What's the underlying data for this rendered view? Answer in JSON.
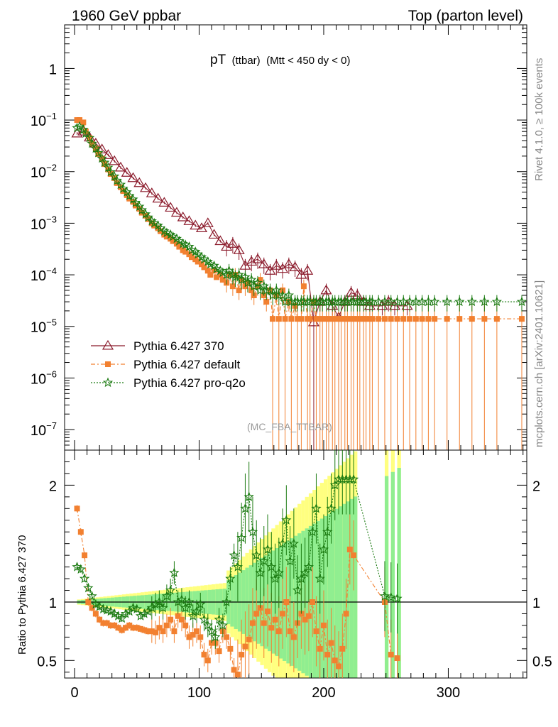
{
  "header": {
    "left": "1960 GeV ppbar",
    "right": "Top (parton level)"
  },
  "plot_title": {
    "main": "pT",
    "sub1": "(ttbar)",
    "sub2": "(Mtt < 450 dy < 0)"
  },
  "side": {
    "rivet": "Rivet 4.1.0, ≥ 100k events",
    "mcplots": "mcplots.cern.ch [arXiv:2401.10621]"
  },
  "watermark": "(MC_FBA_TTBAR)",
  "ratio_ylabel": "Ratio to Pythia 6.427 370",
  "colors": {
    "series370": "#8b1a2b",
    "default": "#f28030",
    "proq2o": "#1a7a10",
    "band_yellow": "#ffff80",
    "band_green": "#90ee90"
  },
  "chart_data": [
    {
      "type": "line",
      "panel": "main",
      "yscale": "log",
      "xlim": [
        -8,
        363
      ],
      "ylim": [
        4e-08,
        7
      ],
      "yticks": [
        {
          "v": 1e-07,
          "base": "10",
          "exp": "−7"
        },
        {
          "v": 1e-06,
          "base": "10",
          "exp": "−6"
        },
        {
          "v": 1e-05,
          "base": "10",
          "exp": "−5"
        },
        {
          "v": 0.0001,
          "base": "10",
          "exp": "−4"
        },
        {
          "v": 0.001,
          "base": "10",
          "exp": "−3"
        },
        {
          "v": 0.01,
          "base": "10",
          "exp": "−2"
        },
        {
          "v": 0.1,
          "base": "10",
          "exp": "−1"
        },
        {
          "v": 1,
          "base": "1",
          "exp": ""
        }
      ],
      "legend": [
        "Pythia 6.427 370",
        "Pythia 6.427 default",
        "Pythia 6.427 pro-q2o"
      ],
      "series": [
        {
          "name": "Pythia 6.427 370",
          "x": [
            2,
            7,
            12,
            17,
            22,
            27,
            32,
            37,
            42,
            47,
            52,
            57,
            62,
            67,
            72,
            77,
            82,
            87,
            92,
            97,
            102,
            107,
            112,
            117,
            122,
            127,
            132,
            137,
            142,
            147,
            152,
            157,
            162,
            167,
            172,
            177,
            182,
            187,
            192,
            197,
            202,
            207,
            212,
            217,
            222,
            227,
            232,
            237,
            247,
            252,
            257,
            267
          ],
          "y": [
            0.055,
            0.06,
            0.046,
            0.035,
            0.027,
            0.021,
            0.016,
            0.012,
            0.0095,
            0.0075,
            0.006,
            0.0048,
            0.0038,
            0.003,
            0.0025,
            0.002,
            0.0016,
            0.0013,
            0.0011,
            0.0009,
            0.0008,
            0.001,
            0.0006,
            0.00045,
            0.00035,
            0.0004,
            0.0003,
            0.00015,
            0.00018,
            0.0002,
            0.00016,
            0.00012,
            0.00015,
            0.00013,
            0.00016,
            0.00014,
            0.0001,
            0.00012,
            1.2e-05,
            3e-05,
            5e-05,
            2.5e-05,
            1.5e-05,
            3e-05,
            4.5e-05,
            4e-05,
            3e-05,
            2.5e-05,
            2.5e-05,
            3e-05,
            2.5e-05,
            2.5e-05
          ]
        },
        {
          "name": "Pythia 6.427 default",
          "x": [
            2,
            4,
            7,
            9,
            12,
            14,
            17,
            19,
            22,
            24,
            27,
            29,
            32,
            34,
            37,
            39,
            42,
            44,
            47,
            49,
            52,
            54,
            57,
            59,
            62,
            64,
            67,
            69,
            72,
            74,
            77,
            79,
            82,
            84,
            87,
            89,
            92,
            94,
            97,
            99,
            102,
            104,
            107,
            109,
            112,
            114,
            117,
            119,
            122,
            124,
            127,
            129,
            132,
            134,
            137,
            139,
            142,
            144,
            147,
            149,
            152,
            154,
            157,
            159,
            162,
            164,
            167,
            169,
            172,
            174,
            177,
            179,
            182,
            184,
            187,
            189,
            192,
            194,
            197,
            199,
            202,
            204,
            207,
            209,
            212,
            214,
            217,
            219,
            222,
            224,
            227,
            229,
            232,
            234,
            237,
            239,
            244,
            249,
            254,
            259,
            264,
            269,
            274,
            279,
            284,
            289,
            299,
            309,
            319,
            329,
            339,
            359
          ],
          "y": [
            0.1,
            0.1,
            0.09,
            0.06,
            0.045,
            0.035,
            0.028,
            0.022,
            0.018,
            0.014,
            0.011,
            0.009,
            0.0075,
            0.006,
            0.005,
            0.0042,
            0.0035,
            0.003,
            0.0026,
            0.0022,
            0.0019,
            0.0016,
            0.0014,
            0.0012,
            0.001,
            0.0009,
            0.0008,
            0.0007,
            0.0006,
            0.00055,
            0.0005,
            0.00045,
            0.0004,
            0.00035,
            0.0003,
            0.00028,
            0.00025,
            0.00022,
            0.0002,
            0.00018,
            0.00016,
            0.00014,
            0.00012,
            0.0001,
            0.00012,
            9e-05,
            0.0001,
            8e-05,
            7e-05,
            0.0001,
            6e-05,
            0.0001,
            5e-05,
            8e-05,
            6e-05,
            7e-05,
            5e-05,
            4e-05,
            6e-05,
            8e-05,
            4e-05,
            3e-05,
            5e-05,
            1.4e-05,
            4e-05,
            1.4e-05,
            5e-05,
            1.4e-05,
            3e-05,
            1.4e-05,
            2.5e-05,
            1.4e-05,
            1.4e-05,
            6e-05,
            1.4e-05,
            1.4e-05,
            3e-05,
            1.4e-05,
            1.4e-05,
            1.4e-05,
            1.4e-05,
            1.4e-05,
            1.4e-05,
            1.4e-05,
            1.4e-05,
            1.4e-05,
            1.4e-05,
            1.4e-05,
            1.4e-05,
            1.4e-05,
            1.4e-05,
            1.4e-05,
            1.4e-05,
            1.4e-05,
            1.4e-05,
            1.4e-05,
            1.4e-05,
            1.4e-05,
            1.4e-05,
            1.4e-05,
            1.4e-05,
            1.4e-05,
            1.4e-05,
            1.4e-05,
            1.4e-05,
            1.4e-05,
            1.4e-05,
            1.4e-05,
            1.4e-05,
            1.4e-05,
            1.4e-05,
            1.4e-05
          ]
        },
        {
          "name": "Pythia 6.427 pro-q2o",
          "x": [
            2,
            4,
            7,
            9,
            12,
            14,
            17,
            19,
            22,
            24,
            27,
            29,
            32,
            34,
            37,
            39,
            42,
            44,
            47,
            49,
            52,
            54,
            57,
            59,
            62,
            64,
            67,
            69,
            72,
            74,
            77,
            79,
            82,
            84,
            87,
            89,
            92,
            94,
            97,
            99,
            102,
            104,
            107,
            109,
            112,
            114,
            117,
            119,
            122,
            124,
            127,
            129,
            132,
            134,
            137,
            139,
            142,
            144,
            147,
            149,
            152,
            154,
            157,
            159,
            162,
            164,
            167,
            169,
            172,
            174,
            177,
            179,
            182,
            184,
            187,
            189,
            192,
            194,
            197,
            199,
            202,
            204,
            207,
            209,
            212,
            214,
            217,
            219,
            222,
            224,
            227,
            229,
            232,
            234,
            237,
            239,
            244,
            249,
            254,
            259,
            264,
            269,
            274,
            279,
            284,
            289,
            299,
            309,
            319,
            329,
            339,
            359
          ],
          "y": [
            0.07,
            0.075,
            0.065,
            0.055,
            0.045,
            0.035,
            0.028,
            0.023,
            0.018,
            0.015,
            0.012,
            0.0098,
            0.0081,
            0.0067,
            0.0056,
            0.0047,
            0.004,
            0.0034,
            0.0029,
            0.0025,
            0.0021,
            0.0018,
            0.0015,
            0.0013,
            0.0011,
            0.001,
            0.0009,
            0.0008,
            0.0007,
            0.00065,
            0.0006,
            0.00055,
            0.0005,
            0.00045,
            0.0004,
            0.00038,
            0.00035,
            0.0003,
            0.00028,
            0.00025,
            0.00022,
            0.0002,
            0.00018,
            0.00016,
            0.00015,
            0.00013,
            0.00012,
            0.00011,
            0.0001,
            0.00012,
            0.0001,
            9e-05,
            0.0001,
            8e-05,
            9e-05,
            7e-05,
            8e-05,
            6e-05,
            7e-05,
            5e-05,
            6e-05,
            5e-05,
            5e-05,
            4e-05,
            5e-05,
            4e-05,
            4e-05,
            3e-05,
            4e-05,
            3e-05,
            3e-05,
            3e-05,
            3e-05,
            3e-05,
            3e-05,
            3e-05,
            3e-05,
            3e-05,
            3e-05,
            3e-05,
            3e-05,
            3e-05,
            3e-05,
            3e-05,
            3e-05,
            3e-05,
            3e-05,
            3e-05,
            3e-05,
            3e-05,
            3e-05,
            3e-05,
            3e-05,
            3e-05,
            3e-05,
            3e-05,
            3e-05,
            3e-05,
            3e-05,
            3e-05,
            3e-05,
            3e-05,
            3e-05,
            3e-05,
            3e-05,
            3e-05,
            3e-05,
            3e-05,
            3e-05,
            3e-05,
            3e-05,
            3e-05
          ]
        }
      ]
    },
    {
      "type": "line",
      "panel": "ratio",
      "xlim": [
        -8,
        363
      ],
      "ylim": [
        0.35,
        2.3
      ],
      "yticks": [
        0.5,
        1,
        2
      ],
      "xticks": [
        0,
        100,
        200,
        300
      ],
      "reference": 1,
      "series": [
        {
          "name": "Pythia 6.427 default",
          "x": [
            2,
            5,
            8,
            11,
            14,
            17,
            20,
            23,
            26,
            29,
            32,
            35,
            38,
            41,
            44,
            47,
            50,
            53,
            56,
            59,
            62,
            65,
            68,
            71,
            74,
            77,
            80,
            83,
            86,
            89,
            92,
            95,
            98,
            101,
            104,
            107,
            110,
            113,
            116,
            119,
            122,
            125,
            128,
            131,
            134,
            137,
            140,
            143,
            146,
            149,
            152,
            155,
            158,
            161,
            164,
            167,
            170,
            173,
            176,
            179,
            182,
            185,
            188,
            191,
            194,
            197,
            200,
            203,
            206,
            209,
            212,
            215,
            218,
            221,
            224,
            249,
            254,
            259
          ],
          "y": [
            1.8,
            1.6,
            1.4,
            1.0,
            0.95,
            0.9,
            0.85,
            0.82,
            0.82,
            0.8,
            0.8,
            0.78,
            0.76,
            0.78,
            0.8,
            0.78,
            0.78,
            0.77,
            0.76,
            0.75,
            0.75,
            0.74,
            0.78,
            0.75,
            0.8,
            0.85,
            0.75,
            0.88,
            0.85,
            0.8,
            0.7,
            0.72,
            0.75,
            0.7,
            0.55,
            0.5,
            0.65,
            0.65,
            0.58,
            0.75,
            0.7,
            0.6,
            0.42,
            0.38,
            0.55,
            0.62,
            0.68,
            0.82,
            0.9,
            0.95,
            0.82,
            0.92,
            0.78,
            0.85,
            0.75,
            0.9,
            1.0,
            0.75,
            0.7,
            0.82,
            0.9,
            0.85,
            0.88,
            1.0,
            0.75,
            0.6,
            0.8,
            0.55,
            0.65,
            0.5,
            0.45,
            0.6,
            0.9,
            1.45,
            1.4,
            1.0,
            0.55,
            0.52
          ]
        },
        {
          "name": "Pythia 6.427 pro-q2o",
          "x": [
            2,
            5,
            8,
            11,
            14,
            17,
            20,
            23,
            26,
            29,
            32,
            35,
            38,
            41,
            44,
            47,
            50,
            53,
            56,
            59,
            62,
            65,
            68,
            71,
            74,
            77,
            80,
            83,
            86,
            89,
            92,
            95,
            98,
            101,
            104,
            107,
            110,
            113,
            116,
            119,
            122,
            125,
            128,
            131,
            134,
            137,
            140,
            143,
            146,
            149,
            152,
            155,
            158,
            161,
            164,
            167,
            170,
            173,
            176,
            179,
            182,
            185,
            188,
            191,
            194,
            197,
            200,
            203,
            206,
            209,
            212,
            215,
            218,
            221,
            224,
            249,
            254,
            259
          ],
          "y": [
            1.3,
            1.28,
            1.2,
            1.12,
            1.05,
            0.98,
            0.96,
            0.94,
            0.93,
            0.92,
            0.9,
            0.88,
            0.86,
            0.9,
            0.92,
            0.95,
            0.94,
            0.88,
            0.9,
            0.92,
            0.95,
            0.98,
            1.0,
            0.95,
            1.05,
            1.1,
            1.25,
            1.0,
            1.02,
            0.95,
            1.0,
            0.88,
            0.92,
            0.98,
            0.85,
            0.8,
            0.75,
            0.7,
            0.85,
            0.8,
            1.0,
            1.2,
            1.4,
            1.3,
            1.55,
            1.8,
            1.9,
            1.6,
            1.4,
            1.25,
            1.35,
            1.45,
            1.3,
            1.2,
            1.25,
            1.5,
            1.7,
            1.35,
            1.5,
            1.1,
            1.2,
            1.25,
            1.3,
            1.6,
            1.8,
            1.2,
            1.45,
            1.6,
            1.8,
            2.0,
            2.05,
            2.05,
            2.05,
            2.05,
            2.05,
            1.05,
            1.04,
            1.03
          ]
        }
      ]
    }
  ]
}
